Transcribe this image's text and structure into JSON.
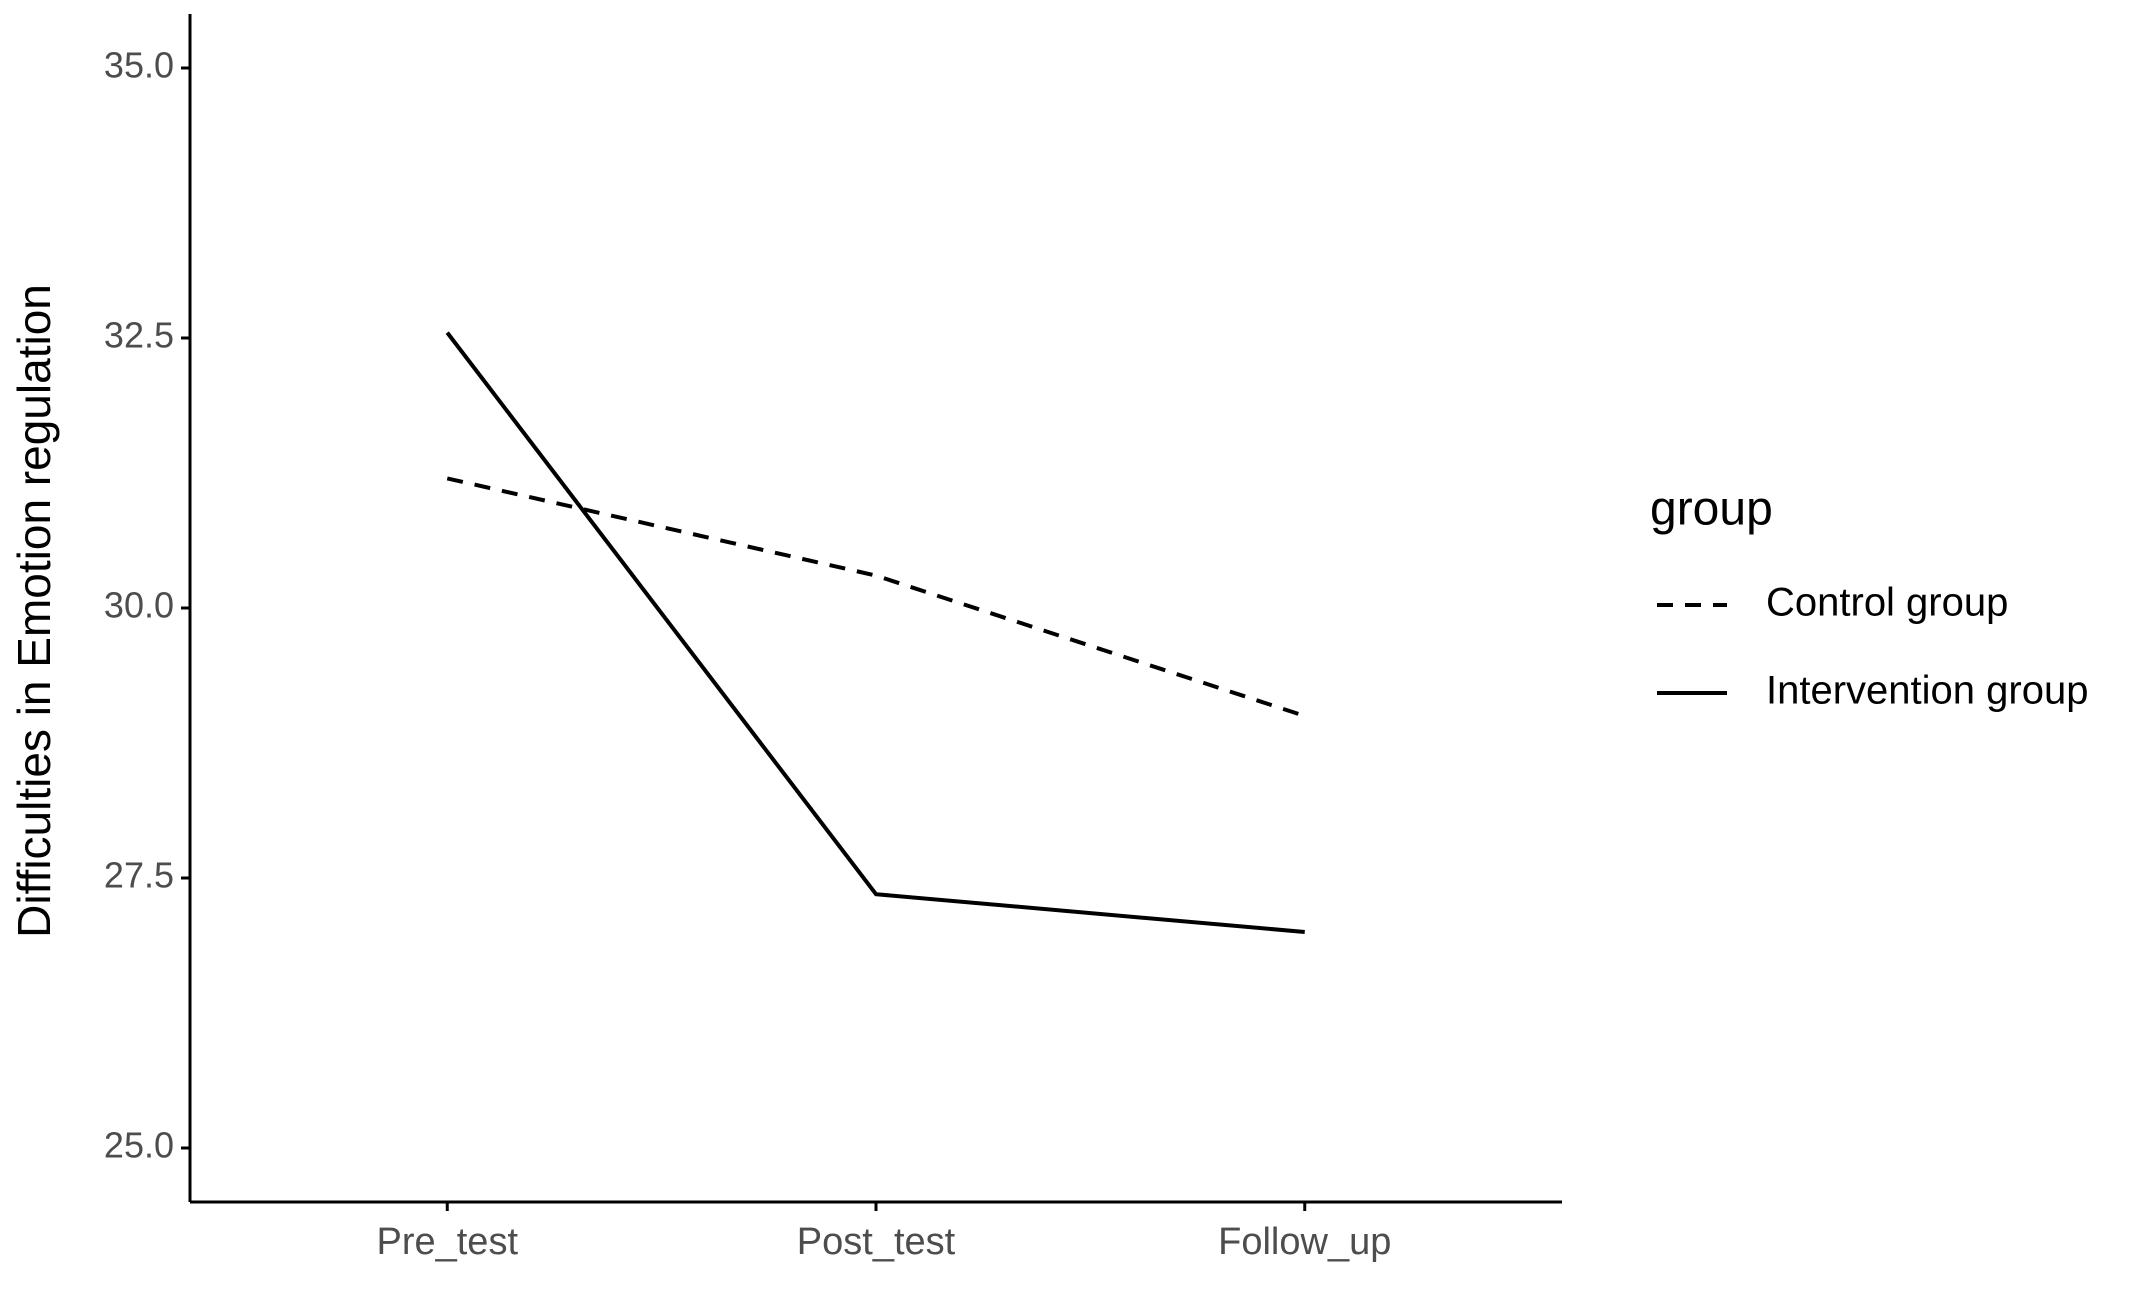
{
  "chart_data": {
    "type": "line",
    "y_label": "Difficulties in Emotion regulation",
    "categories": [
      "Pre_test",
      "Post_test",
      "Follow_up"
    ],
    "series": [
      {
        "name": "Control group",
        "color": "#000000",
        "linestyle": "dashed",
        "values": [
          31.2,
          30.3,
          29.0
        ]
      },
      {
        "name": "Intervention group",
        "color": "#000000",
        "linestyle": "solid",
        "values": [
          32.55,
          27.35,
          27.0
        ]
      }
    ],
    "ylim": [
      24.5,
      35.5
    ],
    "yticks": [
      {
        "value": 25,
        "label": "25.0"
      },
      {
        "value": 27.5,
        "label": "27.5"
      },
      {
        "value": 30,
        "label": "30.0"
      },
      {
        "value": 32.5,
        "label": "32.5"
      },
      {
        "value": 35,
        "label": "35.0"
      }
    ],
    "legend_title": "group",
    "legend": "right"
  }
}
